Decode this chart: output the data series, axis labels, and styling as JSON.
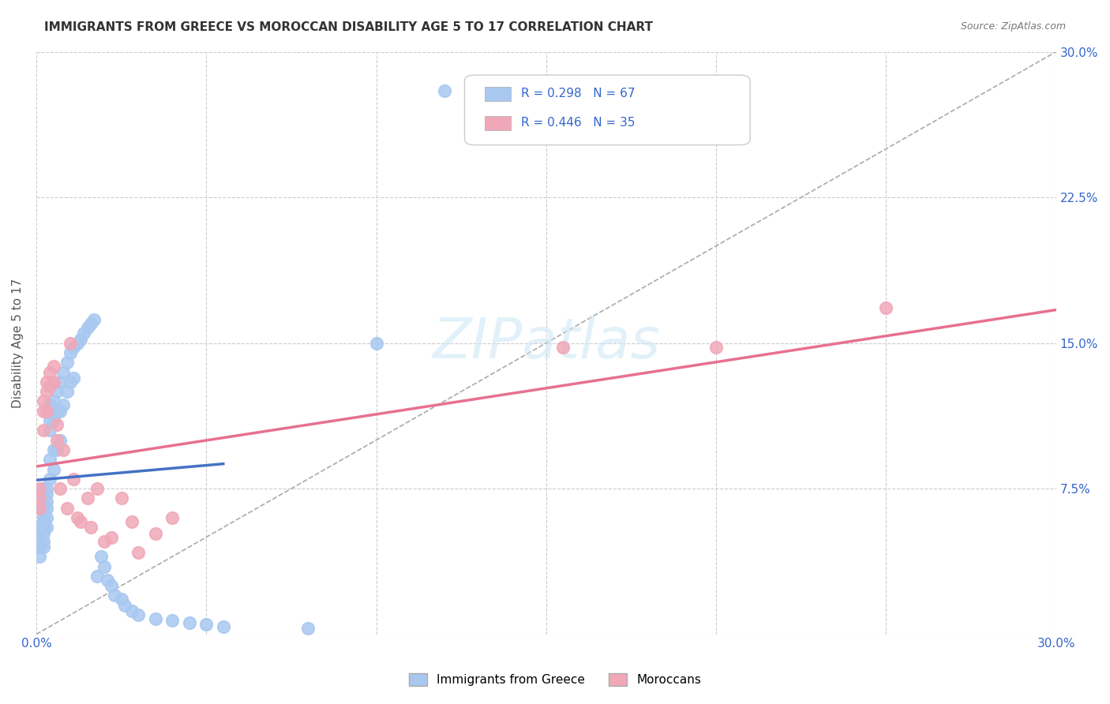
{
  "title": "IMMIGRANTS FROM GREECE VS MOROCCAN DISABILITY AGE 5 TO 17 CORRELATION CHART",
  "source": "Source: ZipAtlas.com",
  "xlabel_bottom": "",
  "ylabel": "Disability Age 5 to 17",
  "xlim": [
    0.0,
    0.3
  ],
  "ylim": [
    0.0,
    0.3
  ],
  "xticks": [
    0.0,
    0.05,
    0.1,
    0.15,
    0.2,
    0.25,
    0.3
  ],
  "yticks": [
    0.0,
    0.075,
    0.15,
    0.225,
    0.3
  ],
  "xticklabels": [
    "0.0%",
    "",
    "",
    "",
    "",
    "",
    "30.0%"
  ],
  "yticklabels_right": [
    "",
    "7.5%",
    "15.0%",
    "22.5%",
    "30.0%"
  ],
  "legend1_label": "R = 0.298   N = 67",
  "legend2_label": "R = 0.446   N = 35",
  "legend_bottom1": "Immigrants from Greece",
  "legend_bottom2": "Moroccans",
  "greece_color": "#a8c8f0",
  "morocco_color": "#f0a8b8",
  "greece_line_color": "#4472c4",
  "morocco_line_color": "#e87090",
  "ref_line_color": "#aaaaaa",
  "watermark": "ZIPatlas",
  "greece_x": [
    0.001,
    0.001,
    0.001,
    0.001,
    0.001,
    0.002,
    0.002,
    0.002,
    0.002,
    0.002,
    0.002,
    0.002,
    0.002,
    0.002,
    0.003,
    0.003,
    0.003,
    0.003,
    0.003,
    0.003,
    0.004,
    0.004,
    0.004,
    0.004,
    0.004,
    0.005,
    0.005,
    0.005,
    0.005,
    0.006,
    0.006,
    0.006,
    0.007,
    0.007,
    0.007,
    0.008,
    0.008,
    0.009,
    0.009,
    0.01,
    0.01,
    0.011,
    0.011,
    0.012,
    0.013,
    0.014,
    0.015,
    0.016,
    0.017,
    0.018,
    0.019,
    0.02,
    0.021,
    0.022,
    0.023,
    0.025,
    0.026,
    0.028,
    0.03,
    0.035,
    0.04,
    0.045,
    0.05,
    0.055,
    0.08,
    0.1,
    0.12
  ],
  "greece_y": [
    0.065,
    0.055,
    0.05,
    0.045,
    0.04,
    0.075,
    0.07,
    0.065,
    0.06,
    0.058,
    0.055,
    0.052,
    0.048,
    0.045,
    0.075,
    0.072,
    0.068,
    0.065,
    0.06,
    0.055,
    0.118,
    0.11,
    0.105,
    0.09,
    0.08,
    0.12,
    0.11,
    0.095,
    0.085,
    0.125,
    0.115,
    0.095,
    0.13,
    0.115,
    0.1,
    0.135,
    0.118,
    0.14,
    0.125,
    0.145,
    0.13,
    0.148,
    0.132,
    0.15,
    0.152,
    0.155,
    0.158,
    0.16,
    0.162,
    0.03,
    0.04,
    0.035,
    0.028,
    0.025,
    0.02,
    0.018,
    0.015,
    0.012,
    0.01,
    0.008,
    0.007,
    0.006,
    0.005,
    0.004,
    0.003,
    0.15,
    0.28
  ],
  "morocco_x": [
    0.001,
    0.001,
    0.001,
    0.002,
    0.002,
    0.002,
    0.003,
    0.003,
    0.003,
    0.004,
    0.004,
    0.005,
    0.005,
    0.006,
    0.006,
    0.007,
    0.008,
    0.009,
    0.01,
    0.011,
    0.012,
    0.013,
    0.015,
    0.016,
    0.018,
    0.02,
    0.022,
    0.025,
    0.028,
    0.03,
    0.035,
    0.04,
    0.155,
    0.2,
    0.25
  ],
  "morocco_y": [
    0.075,
    0.07,
    0.065,
    0.12,
    0.115,
    0.105,
    0.13,
    0.125,
    0.115,
    0.135,
    0.128,
    0.138,
    0.13,
    0.108,
    0.1,
    0.075,
    0.095,
    0.065,
    0.15,
    0.08,
    0.06,
    0.058,
    0.07,
    0.055,
    0.075,
    0.048,
    0.05,
    0.07,
    0.058,
    0.042,
    0.052,
    0.06,
    0.148,
    0.148,
    0.168
  ]
}
